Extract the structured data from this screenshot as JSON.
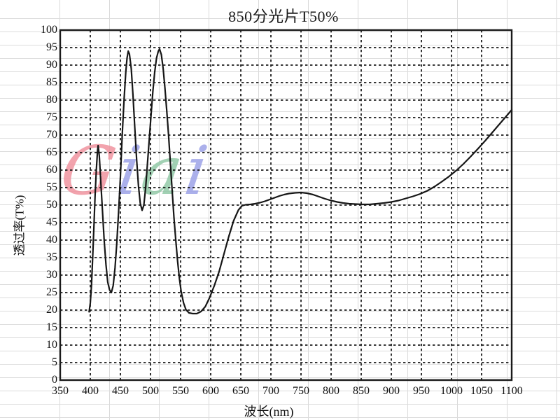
{
  "title": "850分光片T50%",
  "watermark": {
    "text": "Giai",
    "letters": [
      {
        "char": "G",
        "color": "#f0939f"
      },
      {
        "char": "i",
        "color": "#9da3e8"
      },
      {
        "char": "a",
        "color": "#92c9a7"
      },
      {
        "char": "i",
        "color": "#9da3e8"
      }
    ]
  },
  "chart_data": {
    "type": "line",
    "title": "850分光片T50%",
    "xlabel": "波长(nm)",
    "ylabel": "透过率(T%)",
    "xlim": [
      350,
      1100
    ],
    "ylim": [
      0,
      100
    ],
    "x_ticks": [
      350,
      400,
      450,
      500,
      550,
      600,
      650,
      700,
      750,
      800,
      850,
      900,
      950,
      1000,
      1050,
      1100
    ],
    "y_ticks": [
      0,
      5,
      10,
      15,
      20,
      25,
      30,
      35,
      40,
      45,
      50,
      55,
      60,
      65,
      70,
      75,
      80,
      85,
      90,
      95,
      100
    ],
    "grid": "dashed",
    "legend": "none",
    "line_color": "#161616",
    "series": [
      {
        "name": "transmittance",
        "points": [
          [
            398,
            19.5
          ],
          [
            400,
            22
          ],
          [
            402,
            27
          ],
          [
            404,
            35
          ],
          [
            406,
            44
          ],
          [
            408,
            53
          ],
          [
            410,
            60
          ],
          [
            412,
            65.5
          ],
          [
            413,
            67
          ],
          [
            415,
            64
          ],
          [
            417,
            58
          ],
          [
            420,
            49
          ],
          [
            423,
            40
          ],
          [
            426,
            33
          ],
          [
            429,
            28
          ],
          [
            432,
            25.8
          ],
          [
            435,
            25
          ],
          [
            438,
            27
          ],
          [
            441,
            32
          ],
          [
            444,
            39
          ],
          [
            447,
            48
          ],
          [
            450,
            58
          ],
          [
            453,
            70
          ],
          [
            456,
            80
          ],
          [
            459,
            88
          ],
          [
            461,
            92
          ],
          [
            463,
            94
          ],
          [
            465,
            93.2
          ],
          [
            468,
            89
          ],
          [
            471,
            81
          ],
          [
            474,
            72
          ],
          [
            477,
            63
          ],
          [
            480,
            55.5
          ],
          [
            483,
            50.5
          ],
          [
            486,
            48.5
          ],
          [
            489,
            50
          ],
          [
            492,
            55
          ],
          [
            495,
            62
          ],
          [
            498,
            69
          ],
          [
            501,
            76
          ],
          [
            504,
            82.5
          ],
          [
            507,
            88
          ],
          [
            510,
            92
          ],
          [
            513,
            94
          ],
          [
            515,
            94.6
          ],
          [
            518,
            93
          ],
          [
            521,
            89
          ],
          [
            524,
            83.5
          ],
          [
            527,
            77
          ],
          [
            530,
            70
          ],
          [
            533,
            62
          ],
          [
            536,
            54
          ],
          [
            539,
            46.5
          ],
          [
            542,
            40
          ],
          [
            545,
            34
          ],
          [
            548,
            29
          ],
          [
            551,
            25.2
          ],
          [
            555,
            22
          ],
          [
            559,
            20.1
          ],
          [
            564,
            19.2
          ],
          [
            570,
            19
          ],
          [
            577,
            19
          ],
          [
            584,
            19.6
          ],
          [
            591,
            21
          ],
          [
            598,
            23.5
          ],
          [
            606,
            27
          ],
          [
            614,
            31
          ],
          [
            622,
            36
          ],
          [
            630,
            41
          ],
          [
            638,
            45.5
          ],
          [
            646,
            48.6
          ],
          [
            652,
            49.8
          ],
          [
            658,
            50.1
          ],
          [
            666,
            50.2
          ],
          [
            674,
            50.4
          ],
          [
            682,
            50.7
          ],
          [
            690,
            51.1
          ],
          [
            698,
            51.6
          ],
          [
            706,
            52.1
          ],
          [
            714,
            52.6
          ],
          [
            722,
            53
          ],
          [
            730,
            53.3
          ],
          [
            740,
            53.5
          ],
          [
            750,
            53.6
          ],
          [
            760,
            53.4
          ],
          [
            770,
            53
          ],
          [
            780,
            52.4
          ],
          [
            790,
            51.8
          ],
          [
            800,
            51.3
          ],
          [
            810,
            50.9
          ],
          [
            820,
            50.6
          ],
          [
            830,
            50.4
          ],
          [
            840,
            50.3
          ],
          [
            852,
            50.2
          ],
          [
            864,
            50.2
          ],
          [
            876,
            50.4
          ],
          [
            888,
            50.6
          ],
          [
            900,
            50.9
          ],
          [
            912,
            51.3
          ],
          [
            924,
            51.9
          ],
          [
            936,
            52.5
          ],
          [
            948,
            53.2
          ],
          [
            960,
            54.1
          ],
          [
            972,
            55.3
          ],
          [
            984,
            56.7
          ],
          [
            996,
            58.2
          ],
          [
            1008,
            59.9
          ],
          [
            1020,
            61.8
          ],
          [
            1032,
            63.9
          ],
          [
            1044,
            66.1
          ],
          [
            1056,
            68.4
          ],
          [
            1068,
            70.8
          ],
          [
            1080,
            73.2
          ],
          [
            1090,
            75.2
          ],
          [
            1100,
            77.2
          ]
        ]
      }
    ]
  }
}
